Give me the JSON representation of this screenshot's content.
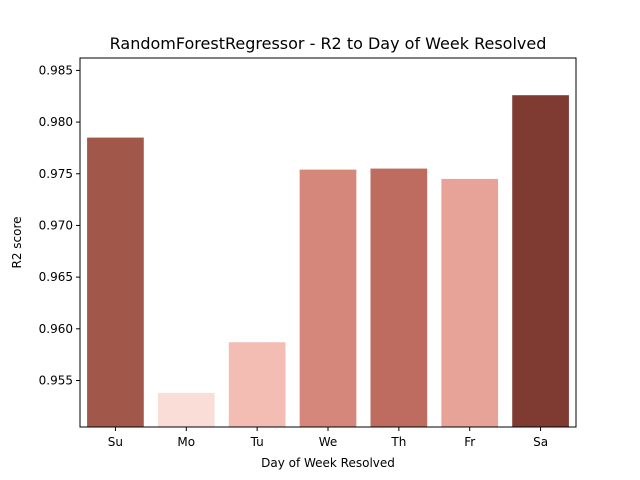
{
  "chart_data": {
    "type": "bar",
    "title": "RandomForestRegressor - R2 to Day of Week Resolved",
    "xlabel": "Day of Week Resolved",
    "ylabel": "R2 score",
    "categories": [
      "Su",
      "Mo",
      "Tu",
      "We",
      "Th",
      "Fr",
      "Sa"
    ],
    "values": [
      0.9785,
      0.9538,
      0.9587,
      0.9754,
      0.9755,
      0.9745,
      0.9826
    ],
    "colors": [
      "#a1574a",
      "#f9ddd6",
      "#f4bdb4",
      "#d4877a",
      "#bd6c5f",
      "#e8a399",
      "#7f3a32"
    ],
    "ylim": [
      0.9505,
      0.9862
    ],
    "yticks": [
      "0.955",
      "0.960",
      "0.965",
      "0.970",
      "0.975",
      "0.980",
      "0.985"
    ],
    "grid": false,
    "legend": "none"
  }
}
